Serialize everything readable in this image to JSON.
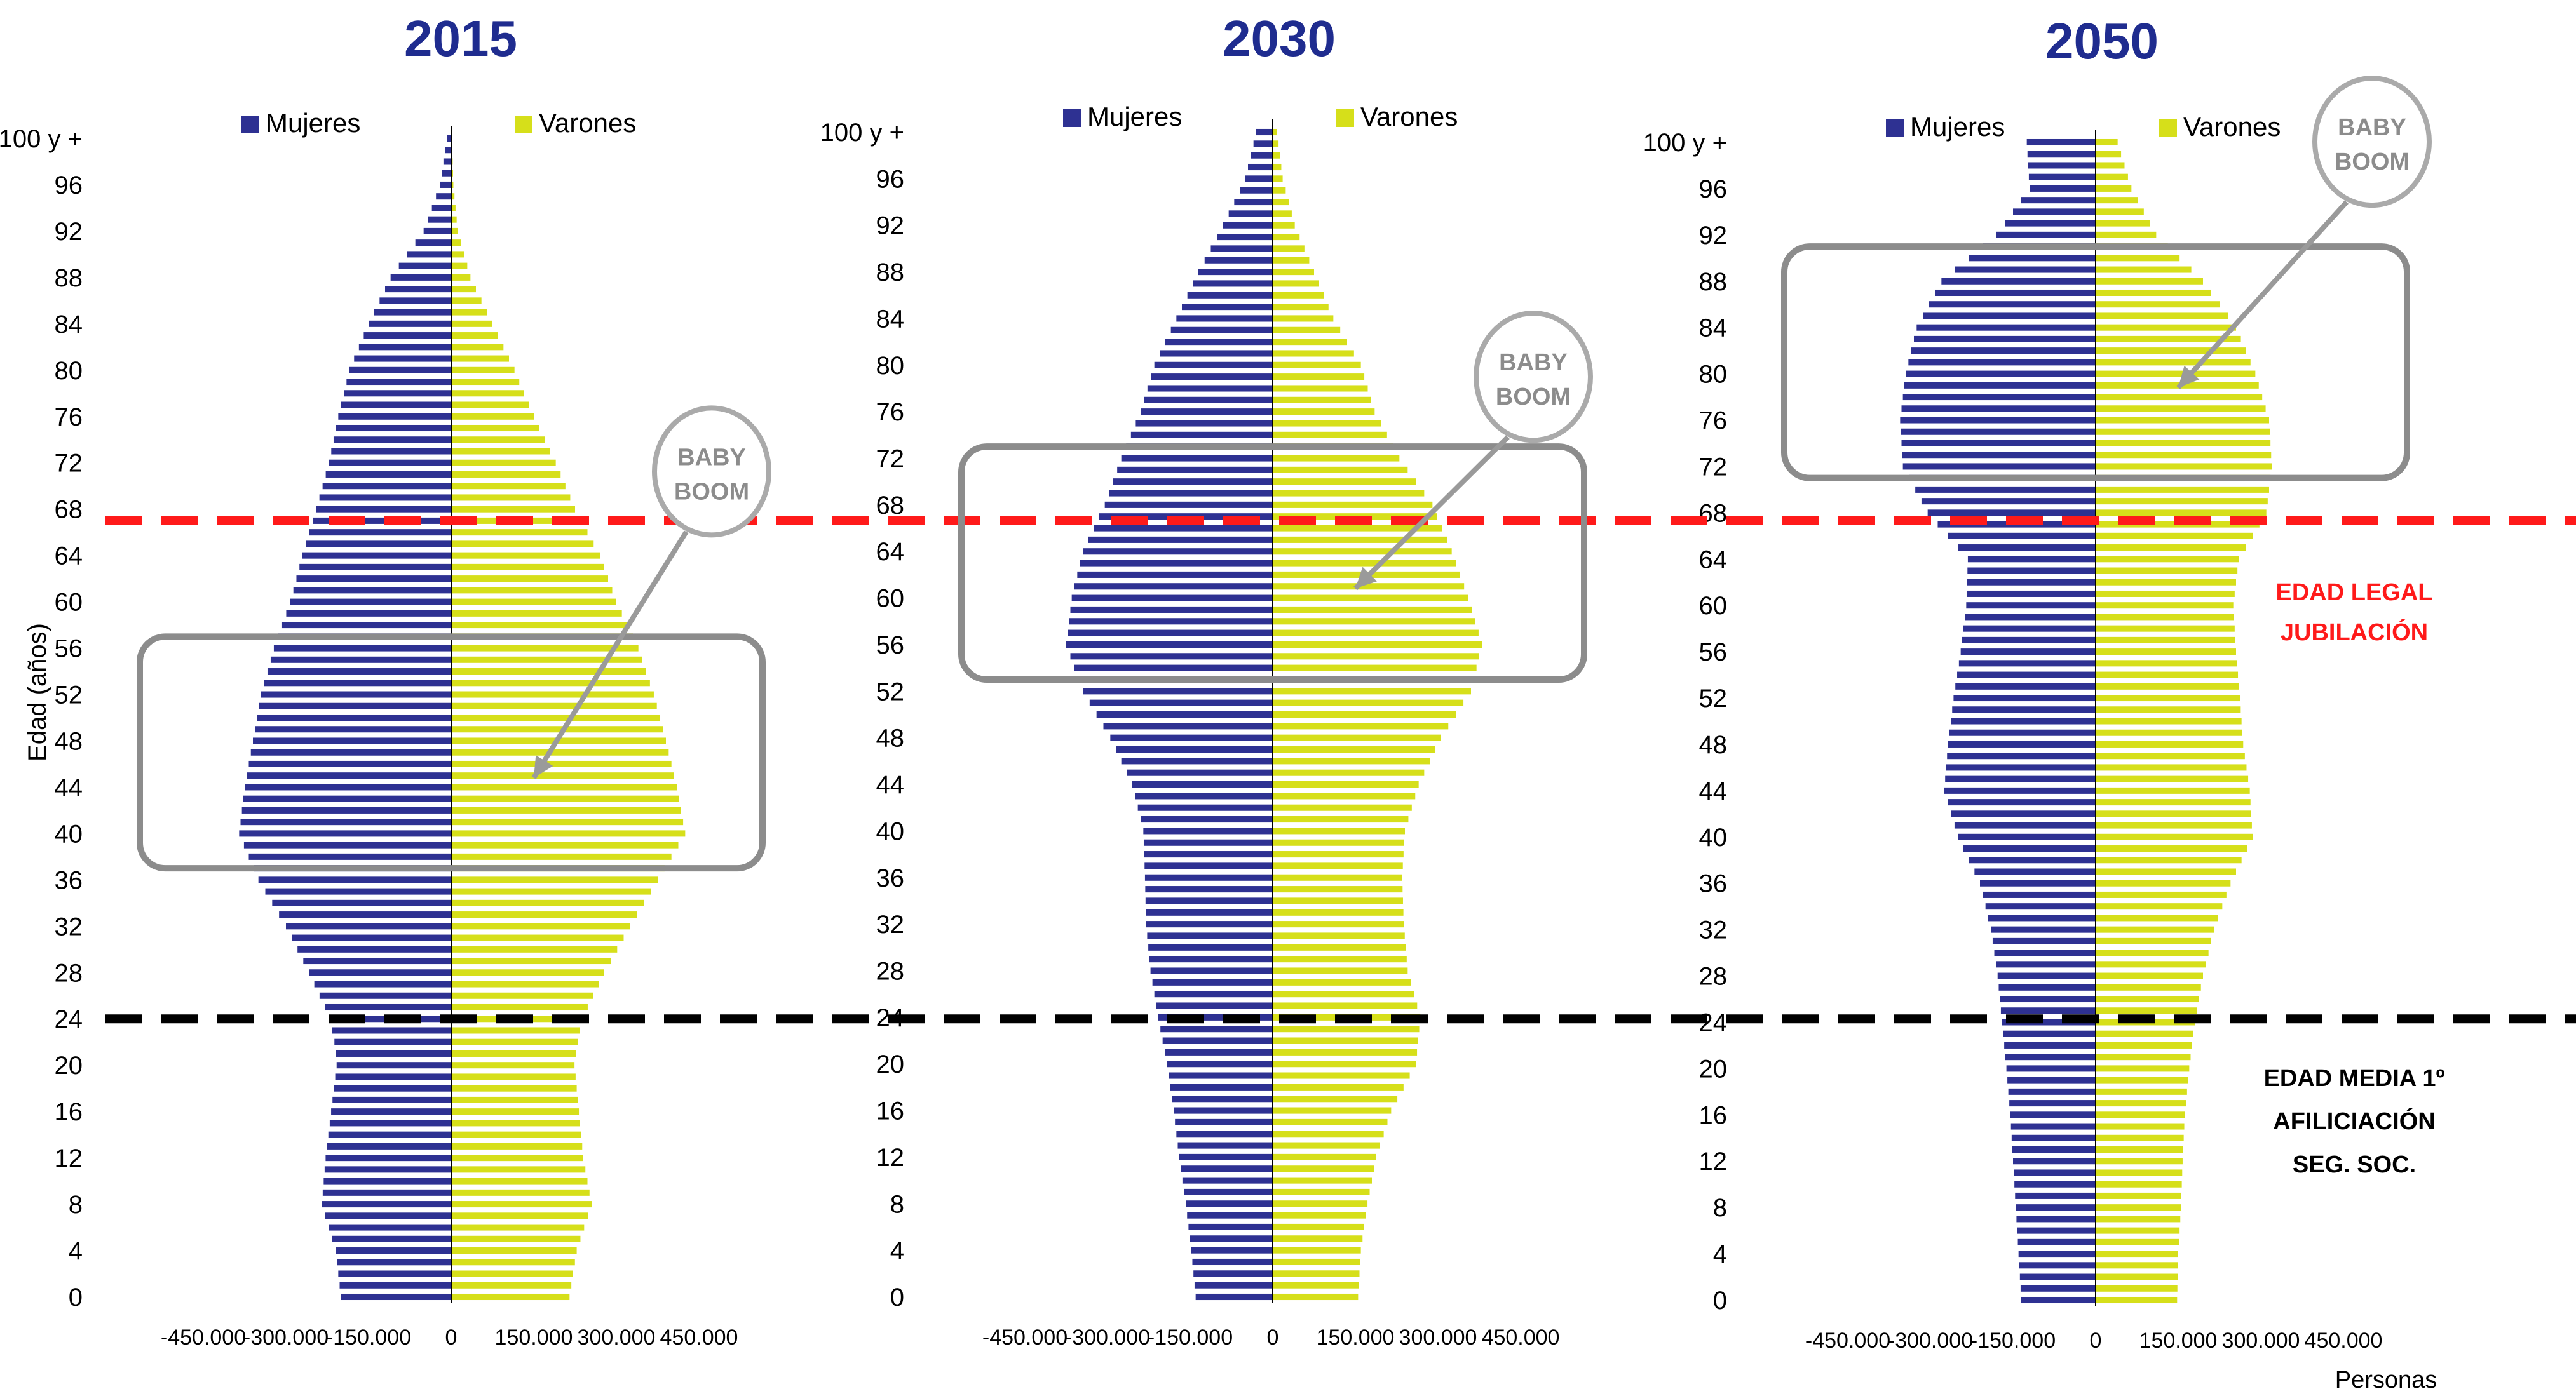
{
  "colors": {
    "mujeres": "#2e3192",
    "varones": "#d6df1a",
    "title": "#1f2c8f",
    "frame": "#8c8c8c",
    "retirement_line": "#ff1a1a",
    "affiliation_line": "#000000",
    "retirement_text": "#ff1a1a"
  },
  "chart_data": [
    {
      "type": "bar",
      "orientation": "horizontal-population-pyramid",
      "title": "2015",
      "ylabel": "Edad (años)",
      "xlabel": "",
      "xlim": [
        -450000,
        450000
      ],
      "x_ticks": [
        "-450.000",
        "-300.000",
        "-150.000",
        "0",
        "150.000",
        "300.000",
        "450.000"
      ],
      "y_ticks": [
        "0",
        "4",
        "8",
        "12",
        "16",
        "20",
        "24",
        "28",
        "32",
        "36",
        "40",
        "44",
        "48",
        "52",
        "56",
        "60",
        "64",
        "68",
        "72",
        "76",
        "80",
        "84",
        "88",
        "92",
        "96",
        "100 y +"
      ],
      "legend": [
        "Mujeres",
        "Varones"
      ],
      "ages": [
        0,
        100
      ],
      "anchors_mujeres": [
        [
          0,
          200000
        ],
        [
          4,
          210000
        ],
        [
          8,
          235000
        ],
        [
          12,
          228000
        ],
        [
          16,
          218000
        ],
        [
          20,
          208000
        ],
        [
          22,
          212000
        ],
        [
          24,
          220000
        ],
        [
          28,
          258000
        ],
        [
          32,
          300000
        ],
        [
          36,
          350000
        ],
        [
          40,
          385000
        ],
        [
          44,
          375000
        ],
        [
          48,
          360000
        ],
        [
          52,
          345000
        ],
        [
          56,
          322000
        ],
        [
          60,
          292000
        ],
        [
          64,
          270000
        ],
        [
          68,
          245000
        ],
        [
          72,
          222000
        ],
        [
          76,
          205000
        ],
        [
          80,
          185000
        ],
        [
          84,
          150000
        ],
        [
          88,
          110000
        ],
        [
          92,
          50000
        ],
        [
          96,
          20000
        ],
        [
          100,
          8000
        ]
      ],
      "anchors_varones": [
        [
          0,
          215000
        ],
        [
          4,
          228000
        ],
        [
          8,
          255000
        ],
        [
          12,
          240000
        ],
        [
          16,
          232000
        ],
        [
          20,
          224000
        ],
        [
          22,
          230000
        ],
        [
          24,
          238000
        ],
        [
          28,
          278000
        ],
        [
          32,
          325000
        ],
        [
          36,
          375000
        ],
        [
          40,
          425000
        ],
        [
          44,
          410000
        ],
        [
          48,
          390000
        ],
        [
          52,
          368000
        ],
        [
          56,
          340000
        ],
        [
          60,
          300000
        ],
        [
          64,
          270000
        ],
        [
          68,
          225000
        ],
        [
          72,
          190000
        ],
        [
          76,
          150000
        ],
        [
          80,
          115000
        ],
        [
          84,
          75000
        ],
        [
          88,
          35000
        ],
        [
          92,
          12000
        ],
        [
          96,
          4000
        ],
        [
          100,
          1500
        ]
      ],
      "baby_boom_box_ages": [
        37,
        57
      ],
      "baby_boom_label": [
        "BABY",
        "BOOM"
      ]
    },
    {
      "type": "bar",
      "orientation": "horizontal-population-pyramid",
      "title": "2030",
      "xlim": [
        -450000,
        450000
      ],
      "x_ticks": [
        "-450.000",
        "-300.000",
        "-150.000",
        "0",
        "150.000",
        "300.000",
        "450.000"
      ],
      "y_ticks": [
        "0",
        "4",
        "8",
        "12",
        "16",
        "20",
        "24",
        "28",
        "32",
        "36",
        "40",
        "44",
        "48",
        "52",
        "56",
        "60",
        "64",
        "68",
        "72",
        "76",
        "80",
        "84",
        "88",
        "92",
        "96",
        "100 y +"
      ],
      "legend": [
        "Mujeres",
        "Varones"
      ],
      "ages": [
        0,
        100
      ],
      "anchors_mujeres": [
        [
          0,
          140000
        ],
        [
          4,
          148000
        ],
        [
          8,
          158000
        ],
        [
          12,
          170000
        ],
        [
          16,
          180000
        ],
        [
          20,
          192000
        ],
        [
          24,
          208000
        ],
        [
          28,
          222000
        ],
        [
          32,
          230000
        ],
        [
          36,
          232000
        ],
        [
          40,
          235000
        ],
        [
          44,
          255000
        ],
        [
          48,
          295000
        ],
        [
          52,
          345000
        ],
        [
          56,
          375000
        ],
        [
          60,
          365000
        ],
        [
          64,
          345000
        ],
        [
          68,
          305000
        ],
        [
          72,
          275000
        ],
        [
          76,
          240000
        ],
        [
          80,
          215000
        ],
        [
          84,
          175000
        ],
        [
          88,
          135000
        ],
        [
          92,
          90000
        ],
        [
          96,
          50000
        ],
        [
          100,
          30000
        ]
      ],
      "anchors_varones": [
        [
          0,
          155000
        ],
        [
          4,
          160000
        ],
        [
          8,
          172000
        ],
        [
          12,
          188000
        ],
        [
          16,
          215000
        ],
        [
          20,
          260000
        ],
        [
          24,
          268000
        ],
        [
          28,
          245000
        ],
        [
          32,
          238000
        ],
        [
          36,
          235000
        ],
        [
          40,
          240000
        ],
        [
          44,
          265000
        ],
        [
          48,
          305000
        ],
        [
          52,
          360000
        ],
        [
          56,
          380000
        ],
        [
          60,
          355000
        ],
        [
          64,
          325000
        ],
        [
          68,
          290000
        ],
        [
          72,
          230000
        ],
        [
          76,
          185000
        ],
        [
          80,
          160000
        ],
        [
          84,
          110000
        ],
        [
          88,
          75000
        ],
        [
          92,
          40000
        ],
        [
          96,
          18000
        ],
        [
          100,
          8000
        ]
      ],
      "baby_boom_box_ages": [
        53,
        73
      ],
      "baby_boom_label": [
        "BABY",
        "BOOM"
      ]
    },
    {
      "type": "bar",
      "orientation": "horizontal-population-pyramid",
      "title": "2050",
      "xlabel": "Personas",
      "xlim": [
        -450000,
        450000
      ],
      "x_ticks": [
        "-450.000",
        "-300.000",
        "-150.000",
        "0",
        "150.000",
        "300.000",
        "450.000"
      ],
      "y_ticks": [
        "0",
        "4",
        "8",
        "12",
        "16",
        "20",
        "24",
        "28",
        "32",
        "36",
        "40",
        "44",
        "48",
        "52",
        "56",
        "60",
        "64",
        "68",
        "72",
        "76",
        "80",
        "84",
        "88",
        "92",
        "96",
        "100 y +"
      ],
      "legend": [
        "Mujeres",
        "Varones"
      ],
      "ages": [
        0,
        100
      ],
      "anchors_mujeres": [
        [
          0,
          135000
        ],
        [
          4,
          140000
        ],
        [
          8,
          145000
        ],
        [
          12,
          150000
        ],
        [
          16,
          155000
        ],
        [
          20,
          162000
        ],
        [
          24,
          170000
        ],
        [
          28,
          178000
        ],
        [
          32,
          190000
        ],
        [
          36,
          210000
        ],
        [
          40,
          250000
        ],
        [
          44,
          275000
        ],
        [
          48,
          268000
        ],
        [
          52,
          258000
        ],
        [
          56,
          245000
        ],
        [
          60,
          235000
        ],
        [
          64,
          232000
        ],
        [
          68,
          305000
        ],
        [
          72,
          350000
        ],
        [
          76,
          355000
        ],
        [
          80,
          345000
        ],
        [
          84,
          325000
        ],
        [
          88,
          280000
        ],
        [
          92,
          180000
        ],
        [
          96,
          120000
        ],
        [
          100,
          125000
        ]
      ],
      "anchors_varones": [
        [
          0,
          148000
        ],
        [
          4,
          150000
        ],
        [
          8,
          155000
        ],
        [
          12,
          158000
        ],
        [
          16,
          162000
        ],
        [
          20,
          170000
        ],
        [
          24,
          180000
        ],
        [
          28,
          195000
        ],
        [
          32,
          215000
        ],
        [
          36,
          245000
        ],
        [
          40,
          285000
        ],
        [
          44,
          280000
        ],
        [
          48,
          268000
        ],
        [
          52,
          262000
        ],
        [
          56,
          255000
        ],
        [
          60,
          250000
        ],
        [
          64,
          260000
        ],
        [
          68,
          310000
        ],
        [
          72,
          320000
        ],
        [
          76,
          315000
        ],
        [
          80,
          290000
        ],
        [
          84,
          255000
        ],
        [
          88,
          195000
        ],
        [
          92,
          110000
        ],
        [
          96,
          65000
        ],
        [
          100,
          40000
        ]
      ],
      "baby_boom_box_ages": [
        71,
        91
      ],
      "baby_boom_label": [
        "BABY",
        "BOOM"
      ]
    }
  ],
  "reference_lines": {
    "retirement_age": 67,
    "retirement_label": [
      "EDAD LEGAL",
      "JUBILACIÓN"
    ],
    "affiliation_age": 24,
    "affiliation_label": [
      "EDAD MEDIA 1º",
      "AFILICIACIÓN",
      "SEG. SOC."
    ]
  }
}
